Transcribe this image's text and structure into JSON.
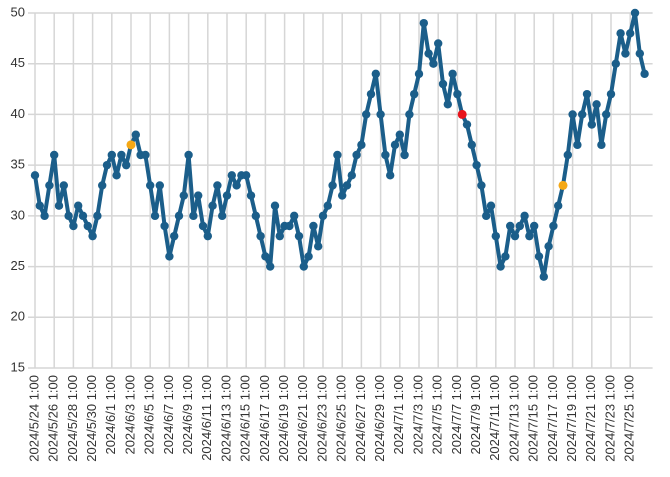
{
  "chart_data": {
    "type": "line",
    "categories": [
      "2024/5/24 1:00",
      null,
      null,
      null,
      "2024/5/26 1:00",
      null,
      null,
      null,
      "2024/5/28 1:00",
      null,
      null,
      null,
      "2024/5/30 1:00",
      null,
      null,
      null,
      "2024/6/1 1:00",
      null,
      null,
      null,
      "2024/6/3 1:00",
      null,
      null,
      null,
      "2024/6/5 1:00",
      null,
      null,
      null,
      "2024/6/7 1:00",
      null,
      null,
      null,
      "2024/6/9 1:00",
      null,
      null,
      null,
      "2024/6/11 1:00",
      null,
      null,
      null,
      "2024/6/13 1:00",
      null,
      null,
      null,
      "2024/6/15 1:00",
      null,
      null,
      null,
      "2024/6/17 1:00",
      null,
      null,
      null,
      "2024/6/19 1:00",
      null,
      null,
      null,
      "2024/6/21 1:00",
      null,
      null,
      null,
      "2024/6/23 1:00",
      null,
      null,
      null,
      "2024/6/25 1:00",
      null,
      null,
      null,
      "2024/6/27 1:00",
      null,
      null,
      null,
      "2024/6/29 1:00",
      null,
      null,
      null,
      "2024/7/1 1:00",
      null,
      null,
      null,
      "2024/7/3 1:00",
      null,
      null,
      null,
      "2024/7/5 1:00",
      null,
      null,
      null,
      "2024/7/7 1:00",
      null,
      null,
      null,
      "2024/7/9 1:00",
      null,
      null,
      null,
      "2024/7/11 1:00",
      null,
      null,
      null,
      "2024/7/13 1:00",
      null,
      null,
      null,
      "2024/7/15 1:00",
      null,
      null,
      null,
      "2024/7/17 1:00",
      null,
      null,
      null,
      "2024/7/19 1:00",
      null,
      null,
      null,
      "2024/7/21 1:00",
      null,
      null,
      null,
      "2024/7/23 1:00",
      null,
      null,
      null,
      "2024/7/25 1:00",
      null,
      null,
      null
    ],
    "series": [
      {
        "color": "#1b5e8a",
        "values": [
          34,
          31,
          30,
          33,
          36,
          31,
          33,
          30,
          29,
          31,
          30,
          29,
          28,
          30,
          33,
          35,
          36,
          34,
          36,
          35,
          37,
          38,
          36,
          36,
          33,
          30,
          33,
          29,
          26,
          28,
          30,
          32,
          36,
          30,
          32,
          29,
          28,
          31,
          33,
          30,
          32,
          34,
          33,
          34,
          34,
          32,
          30,
          28,
          26,
          25,
          31,
          28,
          29,
          29,
          30,
          28,
          25,
          26,
          29,
          27,
          30,
          31,
          33,
          36,
          32,
          33,
          34,
          36,
          37,
          40,
          42,
          44,
          40,
          36,
          34,
          37,
          38,
          36,
          40,
          42,
          44,
          49,
          46,
          45,
          47,
          43,
          41,
          44,
          42,
          40,
          39,
          37,
          35,
          33,
          30,
          31,
          28,
          25,
          26,
          29,
          28,
          29,
          30,
          28,
          29,
          26,
          24,
          27,
          29,
          31,
          33,
          36,
          40,
          37,
          40,
          42,
          39,
          41,
          37,
          40,
          42,
          45,
          48,
          46,
          48,
          50,
          46,
          44
        ]
      },
      {
        "color": "#f5a815",
        "markers_only": true,
        "values": [
          null,
          null,
          null,
          null,
          null,
          null,
          null,
          null,
          null,
          null,
          null,
          null,
          null,
          null,
          null,
          null,
          null,
          null,
          null,
          null,
          37,
          null,
          null,
          null,
          null,
          null,
          null,
          null,
          null,
          null,
          null,
          null,
          null,
          null,
          null,
          null,
          null,
          null,
          null,
          null,
          null,
          null,
          null,
          null,
          null,
          null,
          null,
          null,
          null,
          null,
          null,
          null,
          null,
          null,
          null,
          null,
          null,
          null,
          null,
          null,
          null,
          null,
          null,
          null,
          null,
          null,
          null,
          null,
          null,
          null,
          null,
          null,
          null,
          null,
          null,
          null,
          null,
          null,
          null,
          null,
          null,
          null,
          null,
          null,
          null,
          null,
          null,
          null,
          null,
          null,
          null,
          null,
          null,
          null,
          null,
          null,
          null,
          null,
          null,
          null,
          null,
          null,
          null,
          null,
          null,
          null,
          null,
          null,
          null,
          null,
          33,
          null,
          null,
          null,
          null,
          null,
          null,
          null,
          null,
          null,
          null,
          null,
          null,
          null,
          null,
          null,
          null,
          null
        ]
      },
      {
        "color": "#e8141c",
        "markers_only": true,
        "values": [
          null,
          null,
          null,
          null,
          null,
          null,
          null,
          null,
          null,
          null,
          null,
          null,
          null,
          null,
          null,
          null,
          null,
          null,
          null,
          null,
          null,
          null,
          null,
          null,
          null,
          null,
          null,
          null,
          null,
          null,
          null,
          null,
          null,
          null,
          null,
          null,
          null,
          null,
          null,
          null,
          null,
          null,
          null,
          null,
          null,
          null,
          null,
          null,
          null,
          null,
          null,
          null,
          null,
          null,
          null,
          null,
          null,
          null,
          null,
          null,
          null,
          null,
          null,
          null,
          null,
          null,
          null,
          null,
          null,
          null,
          null,
          null,
          null,
          null,
          null,
          null,
          null,
          null,
          null,
          null,
          null,
          null,
          null,
          null,
          null,
          null,
          null,
          null,
          null,
          40,
          null,
          null,
          null,
          null,
          null,
          null,
          null,
          null,
          null,
          null,
          null,
          null,
          null,
          null,
          null,
          null,
          null,
          null,
          null,
          null,
          null,
          null,
          null,
          null,
          null,
          null,
          null,
          null,
          null,
          null,
          null,
          null,
          null,
          null,
          null,
          null,
          null,
          null
        ]
      }
    ],
    "ylim": [
      15,
      50
    ],
    "yticks": [
      15,
      20,
      25,
      30,
      35,
      40,
      45,
      50
    ],
    "grid": true
  }
}
